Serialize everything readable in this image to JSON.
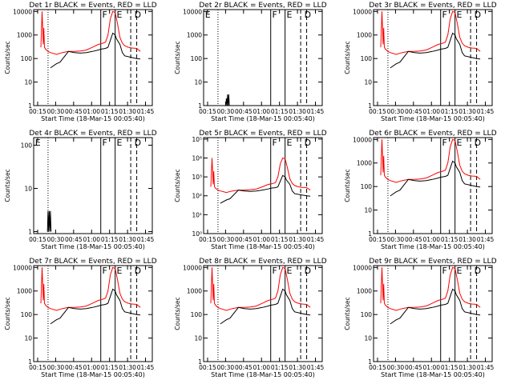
{
  "figure": {
    "start_time_label": "Start Time (18-Mar-15 00:05:40)",
    "ylabel": "Counts/sec",
    "x_ticks": [
      "00:15",
      "00:30",
      "00:45",
      "01:00",
      "01:15",
      "01:30",
      "01:45"
    ],
    "colors": {
      "events": "#000000",
      "lld": "#ff0000",
      "axes": "#000000",
      "background": "#ffffff"
    }
  },
  "chart_data": [
    {
      "title": "Det 1r BLACK = Events, RED = LLD",
      "type": "line",
      "scale": "log",
      "ylim": [
        1,
        12000
      ],
      "y_ticks": [
        "1",
        "10",
        "100",
        "1000",
        "10000"
      ],
      "markers": [
        "F",
        "E",
        "D"
      ],
      "events": {
        "x_min": [
          20,
          25,
          28,
          35,
          40,
          45,
          50,
          55,
          60,
          62,
          64,
          66,
          68,
          70,
          72,
          74,
          75,
          78,
          80,
          82,
          88,
          92,
          95
        ],
        "y": [
          40,
          60,
          70,
          200,
          180,
          170,
          180,
          200,
          230,
          250,
          260,
          270,
          300,
          600,
          1200,
          1000,
          700,
          400,
          180,
          130,
          110,
          100,
          95
        ]
      },
      "lld": {
        "x_min": [
          12,
          13,
          14,
          14.5,
          15,
          16,
          18,
          20,
          25,
          30,
          35,
          40,
          45,
          50,
          55,
          60,
          62,
          64,
          66,
          68,
          70,
          72,
          74,
          76,
          78,
          80,
          82,
          85,
          88,
          92,
          95
        ],
        "y": [
          300,
          10000,
          400,
          2000,
          300,
          250,
          200,
          180,
          150,
          180,
          200,
          200,
          210,
          230,
          300,
          400,
          420,
          450,
          500,
          1000,
          5000,
          10000,
          9000,
          3000,
          800,
          450,
          350,
          300,
          280,
          270,
          200
        ]
      }
    },
    {
      "title": "Det 2r BLACK = Events, RED = LLD",
      "type": "line",
      "scale": "log",
      "ylim": [
        1,
        12000
      ],
      "y_ticks": [
        "1",
        "10",
        "100",
        "1000",
        "10000"
      ],
      "markers": [
        "E",
        "F",
        "E",
        "D"
      ],
      "events": {
        "x_min": [
          24.5,
          25,
          25.5,
          26,
          26.5,
          27,
          27.5
        ],
        "y": [
          1,
          2,
          1,
          3,
          1,
          3,
          1
        ]
      }
    },
    {
      "title": "Det 3r BLACK = Events, RED = LLD",
      "type": "line",
      "scale": "log",
      "ylim": [
        1,
        12000
      ],
      "y_ticks": [
        "1",
        "10",
        "100",
        "1000",
        "10000"
      ],
      "markers": [
        "F",
        "E",
        "D"
      ],
      "events": {
        "x_min": [
          20,
          25,
          28,
          35,
          40,
          45,
          50,
          55,
          60,
          62,
          64,
          66,
          68,
          70,
          72,
          74,
          75,
          78,
          80,
          82,
          88,
          92,
          95
        ],
        "y": [
          40,
          60,
          70,
          200,
          180,
          170,
          180,
          200,
          230,
          250,
          260,
          270,
          300,
          600,
          1200,
          1000,
          700,
          400,
          180,
          130,
          110,
          100,
          95
        ]
      },
      "lld": {
        "x_min": [
          12,
          13,
          14,
          14.5,
          15,
          16,
          18,
          20,
          25,
          30,
          35,
          40,
          45,
          50,
          55,
          60,
          62,
          64,
          66,
          68,
          70,
          72,
          74,
          76,
          78,
          80,
          82,
          85,
          88,
          92,
          95
        ],
        "y": [
          300,
          10000,
          400,
          2000,
          300,
          250,
          200,
          180,
          150,
          180,
          200,
          200,
          210,
          230,
          300,
          400,
          420,
          450,
          500,
          1000,
          5000,
          10000,
          9000,
          3000,
          800,
          450,
          350,
          300,
          280,
          270,
          200
        ]
      }
    },
    {
      "title": "Det 4r BLACK = Events, RED = LLD",
      "type": "line",
      "scale": "log",
      "ylim": [
        0.9,
        150
      ],
      "y_ticks": [
        "1",
        "10",
        "100"
      ],
      "markers": [
        "E",
        "F",
        "E",
        "D"
      ],
      "events": {
        "x_min": [
          17.5,
          18,
          18.5,
          19,
          19.5,
          20,
          20.5
        ],
        "y": [
          1,
          3,
          1,
          3,
          1,
          3,
          1
        ]
      }
    },
    {
      "title": "Det 5r BLACK = Events, RED = LLD",
      "type": "line",
      "scale": "log",
      "ylim": [
        1,
        120000
      ],
      "y_ticks": [
        "10⁰",
        "10¹",
        "10²",
        "10³",
        "10⁴",
        "10⁵"
      ],
      "markers": [
        "F",
        "E",
        "D"
      ],
      "events": {
        "x_min": [
          20,
          25,
          28,
          35,
          40,
          45,
          50,
          55,
          60,
          62,
          64,
          66,
          68,
          70,
          72,
          74,
          75,
          78,
          80,
          82,
          88,
          92,
          95
        ],
        "y": [
          40,
          60,
          70,
          200,
          180,
          170,
          180,
          200,
          230,
          250,
          260,
          270,
          300,
          600,
          1200,
          1000,
          700,
          400,
          180,
          130,
          110,
          100,
          95
        ]
      },
      "lld": {
        "x_min": [
          12,
          13,
          14,
          14.5,
          15,
          16,
          18,
          20,
          25,
          30,
          35,
          40,
          45,
          50,
          55,
          60,
          62,
          64,
          66,
          68,
          70,
          72,
          74,
          76,
          78,
          80,
          82,
          85,
          88,
          92,
          95
        ],
        "y": [
          300,
          10000,
          400,
          2000,
          300,
          250,
          200,
          180,
          150,
          180,
          200,
          200,
          210,
          230,
          300,
          400,
          420,
          450,
          500,
          1000,
          5000,
          10000,
          9000,
          3000,
          800,
          450,
          350,
          300,
          280,
          270,
          200
        ]
      }
    },
    {
      "title": "Det 6r BLACK = Events, RED = LLD",
      "type": "line",
      "scale": "log",
      "ylim": [
        1,
        12000
      ],
      "y_ticks": [
        "1",
        "10",
        "100",
        "1000",
        "10000"
      ],
      "markers": [
        "F",
        "E",
        "D"
      ],
      "events": {
        "x_min": [
          20,
          25,
          28,
          35,
          40,
          45,
          50,
          55,
          60,
          62,
          64,
          66,
          68,
          70,
          72,
          74,
          75,
          78,
          80,
          82,
          88,
          92,
          95
        ],
        "y": [
          40,
          60,
          70,
          200,
          180,
          170,
          180,
          200,
          230,
          250,
          260,
          270,
          300,
          600,
          1200,
          1000,
          700,
          400,
          180,
          130,
          110,
          100,
          95
        ]
      },
      "lld": {
        "x_min": [
          12,
          13,
          14,
          14.5,
          15,
          16,
          18,
          20,
          25,
          30,
          35,
          40,
          45,
          50,
          55,
          60,
          62,
          64,
          66,
          68,
          70,
          72,
          74,
          76,
          78,
          80,
          82,
          85,
          88,
          92,
          95
        ],
        "y": [
          300,
          10000,
          400,
          2000,
          300,
          250,
          200,
          180,
          150,
          180,
          200,
          200,
          210,
          230,
          300,
          400,
          420,
          450,
          500,
          1000,
          5000,
          10000,
          9000,
          3000,
          800,
          450,
          350,
          300,
          280,
          270,
          200
        ]
      }
    },
    {
      "title": "Det 7r BLACK = Events, RED = LLD",
      "type": "line",
      "scale": "log",
      "ylim": [
        1,
        12000
      ],
      "y_ticks": [
        "1",
        "10",
        "100",
        "1000",
        "10000"
      ],
      "markers": [
        "F",
        "E",
        "D"
      ],
      "events": {
        "x_min": [
          20,
          25,
          28,
          35,
          40,
          45,
          50,
          55,
          60,
          62,
          64,
          66,
          68,
          70,
          72,
          74,
          75,
          78,
          80,
          82,
          88,
          92,
          95
        ],
        "y": [
          40,
          60,
          70,
          200,
          180,
          170,
          180,
          200,
          230,
          250,
          260,
          270,
          300,
          600,
          1200,
          1000,
          700,
          400,
          180,
          130,
          110,
          100,
          95
        ]
      },
      "lld": {
        "x_min": [
          12,
          13,
          14,
          14.5,
          15,
          16,
          18,
          20,
          25,
          30,
          35,
          40,
          45,
          50,
          55,
          60,
          62,
          64,
          66,
          68,
          70,
          72,
          74,
          76,
          78,
          80,
          82,
          85,
          88,
          92,
          95
        ],
        "y": [
          300,
          10000,
          400,
          2000,
          300,
          250,
          200,
          180,
          150,
          180,
          200,
          200,
          210,
          230,
          300,
          400,
          420,
          450,
          500,
          1000,
          5000,
          10000,
          9000,
          3000,
          800,
          450,
          350,
          300,
          280,
          270,
          200
        ]
      }
    },
    {
      "title": "Det 8r BLACK = Events, RED = LLD",
      "type": "line",
      "scale": "log",
      "ylim": [
        1,
        12000
      ],
      "y_ticks": [
        "1",
        "10",
        "100",
        "1000",
        "10000"
      ],
      "markers": [
        "F",
        "E",
        "D"
      ],
      "events": {
        "x_min": [
          20,
          25,
          28,
          35,
          40,
          45,
          50,
          55,
          60,
          62,
          64,
          66,
          68,
          70,
          72,
          74,
          75,
          78,
          80,
          82,
          88,
          92,
          95
        ],
        "y": [
          40,
          60,
          70,
          200,
          180,
          170,
          180,
          200,
          230,
          250,
          260,
          270,
          300,
          600,
          1200,
          1000,
          700,
          400,
          180,
          130,
          110,
          100,
          95
        ]
      },
      "lld": {
        "x_min": [
          12,
          13,
          14,
          14.5,
          15,
          16,
          18,
          20,
          25,
          30,
          35,
          40,
          45,
          50,
          55,
          60,
          62,
          64,
          66,
          68,
          70,
          72,
          74,
          76,
          78,
          80,
          82,
          85,
          88,
          92,
          95
        ],
        "y": [
          300,
          10000,
          400,
          2000,
          300,
          250,
          200,
          180,
          150,
          180,
          200,
          200,
          210,
          230,
          300,
          400,
          420,
          450,
          500,
          1000,
          5000,
          10000,
          9000,
          3000,
          800,
          450,
          350,
          300,
          280,
          270,
          200
        ]
      }
    },
    {
      "title": "Det 9r BLACK = Events, RED = LLD",
      "type": "line",
      "scale": "log",
      "ylim": [
        1,
        12000
      ],
      "y_ticks": [
        "1",
        "10",
        "100",
        "1000",
        "10000"
      ],
      "markers": [
        "F",
        "E",
        "D"
      ],
      "events": {
        "x_min": [
          20,
          25,
          28,
          35,
          40,
          45,
          50,
          55,
          60,
          62,
          64,
          66,
          68,
          70,
          72,
          74,
          75,
          78,
          80,
          82,
          88,
          92,
          95
        ],
        "y": [
          40,
          60,
          70,
          200,
          180,
          170,
          180,
          200,
          230,
          250,
          260,
          270,
          300,
          600,
          1200,
          1000,
          700,
          400,
          180,
          130,
          110,
          100,
          95
        ]
      },
      "lld": {
        "x_min": [
          12,
          13,
          14,
          14.5,
          15,
          16,
          18,
          20,
          25,
          30,
          35,
          40,
          45,
          50,
          55,
          60,
          62,
          64,
          66,
          68,
          70,
          72,
          74,
          76,
          78,
          80,
          82,
          85,
          88,
          92,
          95
        ],
        "y": [
          300,
          10000,
          400,
          2000,
          300,
          250,
          200,
          180,
          150,
          180,
          200,
          200,
          210,
          230,
          300,
          400,
          420,
          450,
          500,
          1000,
          5000,
          10000,
          9000,
          3000,
          800,
          450,
          350,
          300,
          280,
          270,
          200
        ]
      }
    }
  ]
}
